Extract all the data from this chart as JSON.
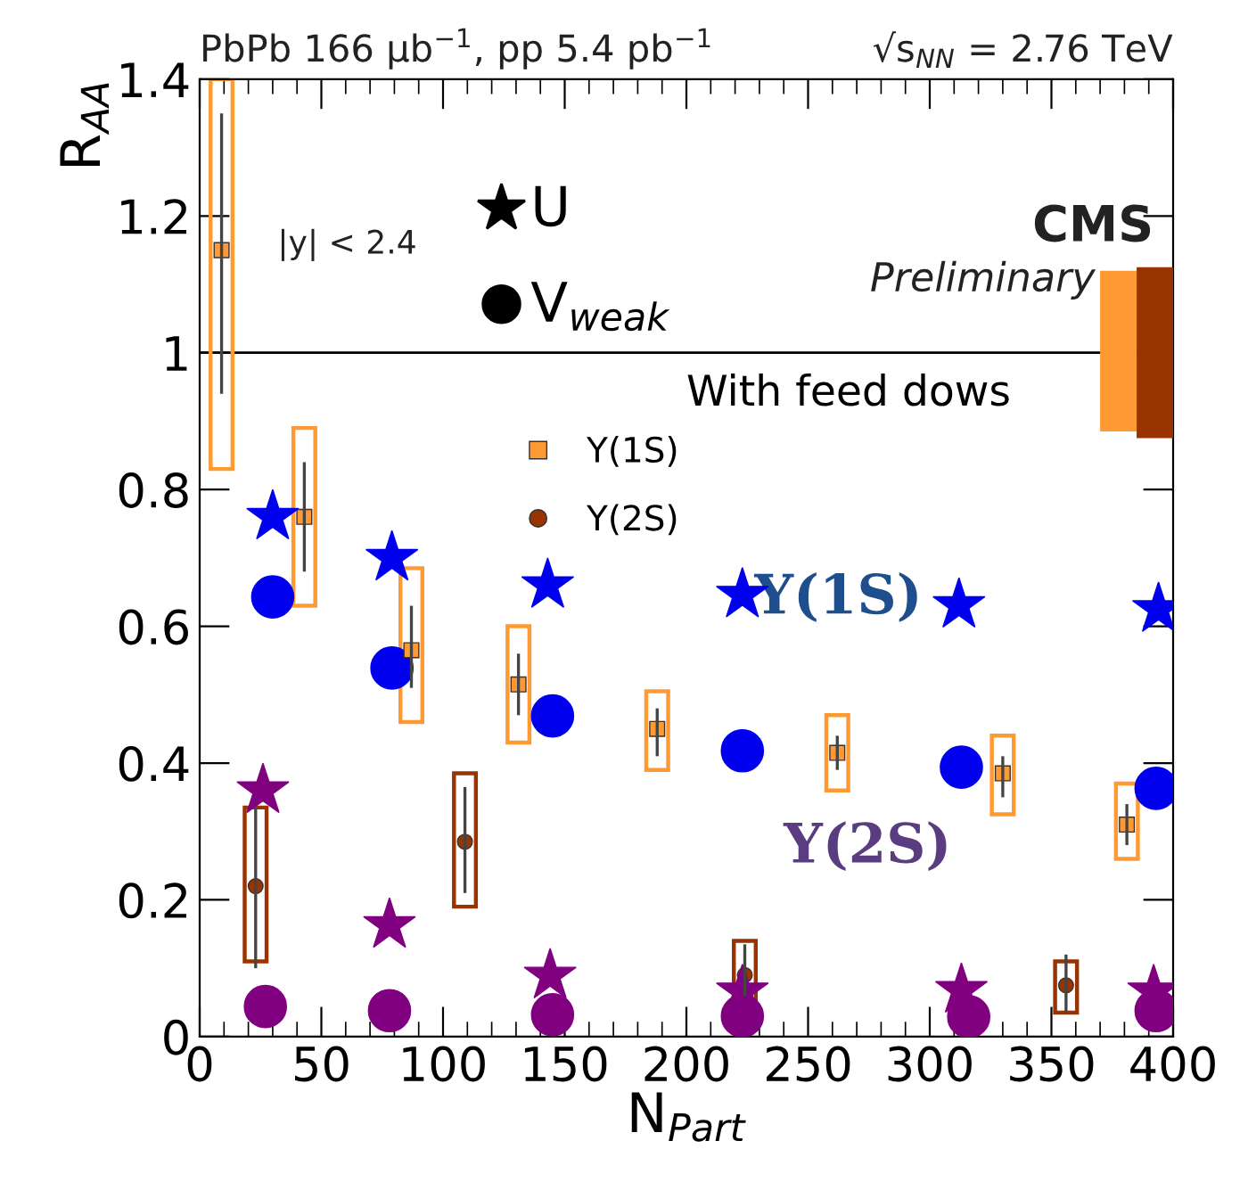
{
  "chart_data": {
    "type": "scatter",
    "xlabel": "N$_{Part}$",
    "ylabel": "R$_{AA}$",
    "xlim": [
      0,
      400
    ],
    "ylim": [
      0,
      1.4
    ],
    "xticks": [
      0,
      50,
      100,
      150,
      200,
      250,
      300,
      350,
      400
    ],
    "yticks": [
      0,
      0.2,
      0.4,
      0.6,
      0.8,
      1,
      1.2,
      1.4
    ],
    "grid": false,
    "legend": "top left",
    "ref_lines": [
      {
        "axis": "y",
        "value": 1,
        "color": "#000000"
      }
    ],
    "annotations": [
      "PbPb 166 μb$^{−1}$, pp 5.4 pb$^{−1}$",
      "√s$_{NN}$ = 2.76 TeV",
      "|y| < 2.4",
      "CMS",
      "Preliminary",
      "U",
      "V$_{weak}$",
      "With feed dows",
      "Υ(1S)",
      "Υ(2S)"
    ],
    "series": [
      {
        "type": "bar",
        "line_style": "solid",
        "color": "#ff9933",
        "x": [
          9,
          43,
          87,
          131,
          188,
          262,
          330,
          381
        ],
        "base": [
          0.83,
          0.63,
          0.46,
          0.43,
          0.39,
          0.36,
          0.325,
          0.26
        ],
        "values": [
          0.57,
          0.26,
          0.225,
          0.17,
          0.115,
          0.11,
          0.115,
          0.11
        ]
      },
      {
        "type": "bar",
        "line_style": "solid",
        "color": "#993300",
        "x": [
          23,
          109,
          224,
          356
        ],
        "base": [
          0.11,
          0.19,
          0.04,
          0.035
        ],
        "values": [
          0.225,
          0.195,
          0.1,
          0.075
        ]
      },
      {
        "type": "bar",
        "color": "#ff9933",
        "x": [
          377.5
        ],
        "base": [
          0.885
        ],
        "values": [
          0.235
        ]
      },
      {
        "type": "bar",
        "color": "#993300",
        "x": [
          392.5
        ],
        "base": [
          0.875
        ],
        "values": [
          0.25
        ]
      },
      {
        "marker": "star",
        "color": "#0000ee",
        "x": [
          30,
          79,
          143,
          223,
          312,
          394
        ],
        "values": [
          0.76,
          0.7,
          0.66,
          0.646,
          0.631,
          0.625
        ]
      },
      {
        "marker": "circle",
        "color": "#0000ee",
        "x": [
          30,
          79,
          145,
          223,
          313,
          393
        ],
        "values": [
          0.643,
          0.539,
          0.469,
          0.418,
          0.394,
          0.363
        ]
      },
      {
        "marker": "star",
        "color": "#800080",
        "x": [
          26,
          78,
          144,
          223,
          313,
          392
        ],
        "values": [
          0.36,
          0.163,
          0.089,
          0.066,
          0.068,
          0.066
        ]
      },
      {
        "marker": "circle",
        "color": "#800080",
        "x": [
          27,
          78,
          145,
          223,
          316,
          393
        ],
        "values": [
          0.044,
          0.038,
          0.032,
          0.03,
          0.029,
          0.038
        ]
      },
      {
        "name": "Υ(1S)",
        "marker": "square",
        "color": "#ff9933",
        "x": [
          9,
          43,
          87,
          131,
          188,
          262,
          330,
          381
        ],
        "values": [
          1.15,
          0.76,
          0.565,
          0.515,
          0.45,
          0.415,
          0.385,
          0.31
        ],
        "errors": [
          [
            0.94,
            1.35
          ],
          [
            0.68,
            0.84
          ],
          [
            0.51,
            0.63
          ],
          [
            0.47,
            0.56
          ],
          [
            0.41,
            0.48
          ],
          [
            0.39,
            0.44
          ],
          [
            0.35,
            0.41
          ],
          [
            0.28,
            0.34
          ]
        ]
      },
      {
        "name": "Υ(2S)",
        "marker": "circle",
        "color": "#993300",
        "x": [
          23,
          109,
          224,
          356
        ],
        "values": [
          0.22,
          0.285,
          0.09,
          0.075
        ],
        "errors": [
          [
            0.1,
            0.335
          ],
          [
            0.21,
            0.365
          ],
          [
            0.06,
            0.135
          ],
          [
            0.035,
            0.12
          ]
        ]
      }
    ]
  }
}
